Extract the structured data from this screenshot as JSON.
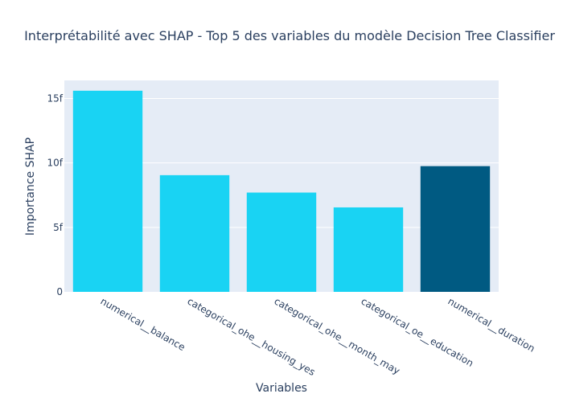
{
  "chart_data": {
    "type": "bar",
    "title": "Interprétabilité avec SHAP - Top 5 des variables du modèle Decision Tree Classifier",
    "xlabel": "Variables",
    "ylabel": "Importance SHAP",
    "categories": [
      "numerical__balance",
      "categorical_ohe__housing_yes",
      "categorical_ohe__month_may",
      "categorical_oe__education",
      "numerical__duration"
    ],
    "values": [
      15.6,
      9.05,
      7.7,
      6.55,
      9.75
    ],
    "colors": [
      "#19d3f3",
      "#19d3f3",
      "#19d3f3",
      "#19d3f3",
      "#005a82"
    ],
    "ylim": [
      0,
      16.4
    ],
    "yticks": [
      {
        "value": 0,
        "label": "0"
      },
      {
        "value": 5,
        "label": "5f"
      },
      {
        "value": 10,
        "label": "10f"
      },
      {
        "value": 15,
        "label": "15f"
      }
    ],
    "grid": true,
    "plot_bg": "#e5ecf6"
  }
}
